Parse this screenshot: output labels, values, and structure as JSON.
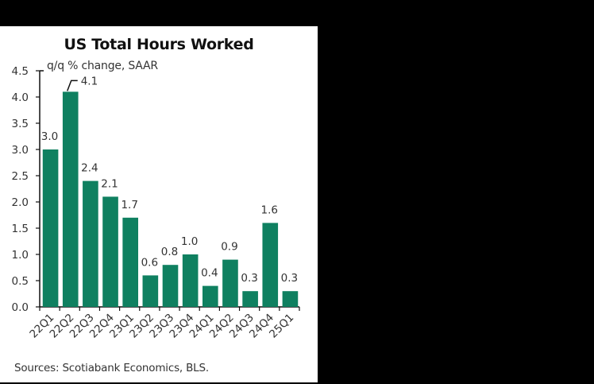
{
  "chart_data": {
    "type": "bar",
    "title": "US Total Hours Worked",
    "subtitle": "q/q % change, SAAR",
    "xlabel": "",
    "ylabel": "q/q % change, SAAR",
    "categories": [
      "22Q1",
      "22Q2",
      "22Q3",
      "22Q4",
      "23Q1",
      "23Q2",
      "23Q3",
      "23Q4",
      "24Q1",
      "24Q2",
      "24Q3",
      "24Q4",
      "25Q1"
    ],
    "values": [
      3.0,
      4.1,
      2.4,
      2.1,
      1.7,
      0.6,
      0.8,
      1.0,
      0.4,
      0.9,
      0.3,
      1.6,
      0.3
    ],
    "value_labels": [
      "3.0",
      "4.1",
      "2.4",
      "2.1",
      "1.7",
      "0.6",
      "0.8",
      "1.0",
      "0.4",
      "0.9",
      "0.3",
      "1.6",
      "0.3"
    ],
    "ylim": [
      0,
      4.5
    ],
    "yticks": [
      "0.0",
      "0.5",
      "1.0",
      "1.5",
      "2.0",
      "2.5",
      "3.0",
      "3.5",
      "4.0",
      "4.5"
    ],
    "grid": false,
    "legend": null,
    "bar_color": "#0f8060",
    "source": "Sources: Scotiabank Economics, BLS."
  },
  "header": {
    "title": "US Total Hours Worked",
    "unit_label": "q/q % change, SAAR"
  },
  "footer": {
    "source": "Sources: Scotiabank Economics, BLS."
  }
}
